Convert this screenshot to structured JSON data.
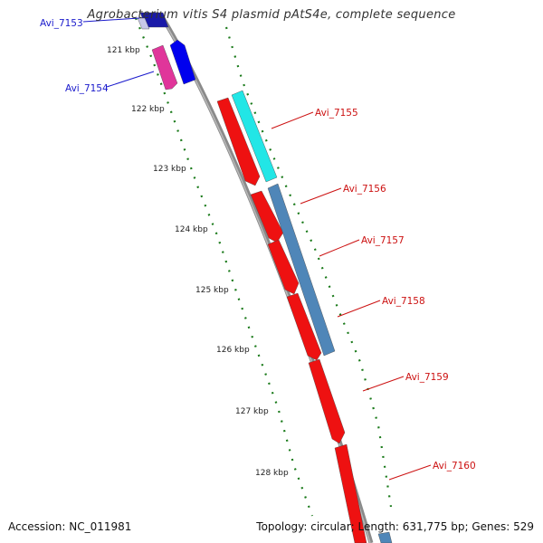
{
  "header": {
    "title": "Agrobacterium vitis S4 plasmid pAtS4e, complete sequence"
  },
  "footer": {
    "accession": "Accession: NC_011981",
    "summary": "Topology: circular; Length: 631,775 bp; Genes: 529"
  },
  "ticks": [
    {
      "label": "121 kbp"
    },
    {
      "label": "122 kbp"
    },
    {
      "label": "123 kbp"
    },
    {
      "label": "124 kbp"
    },
    {
      "label": "125 kbp"
    },
    {
      "label": "126 kbp"
    },
    {
      "label": "127 kbp"
    },
    {
      "label": "128 kbp"
    }
  ],
  "genes": [
    {
      "name": "Avi_7153",
      "color": "#1a1aa8",
      "track": "forward"
    },
    {
      "name": "Avi_7154",
      "color": "#e0359a",
      "track": "reverse"
    },
    {
      "name": "Avi_7155",
      "color": "#ee1111",
      "track": "reverse"
    },
    {
      "name": "Avi_7156",
      "color": "#ee1111",
      "track": "reverse"
    },
    {
      "name": "Avi_7157",
      "color": "#ee1111",
      "track": "reverse"
    },
    {
      "name": "Avi_7158",
      "color": "#ee1111",
      "track": "reverse"
    },
    {
      "name": "Avi_7159",
      "color": "#ee1111",
      "track": "reverse"
    },
    {
      "name": "Avi_7160",
      "color": "#ee1111",
      "track": "reverse"
    }
  ],
  "features": [
    {
      "kind": "forward-gene",
      "color": "#0000ee"
    },
    {
      "kind": "cds",
      "color": "#22e6e6"
    },
    {
      "kind": "cds",
      "color": "#4f86b8"
    }
  ],
  "colors": {
    "backbone": "#8a8a8a",
    "tick": "#1a7a1a",
    "label_blue": "#1a1acc",
    "label_red": "#cc1111"
  }
}
